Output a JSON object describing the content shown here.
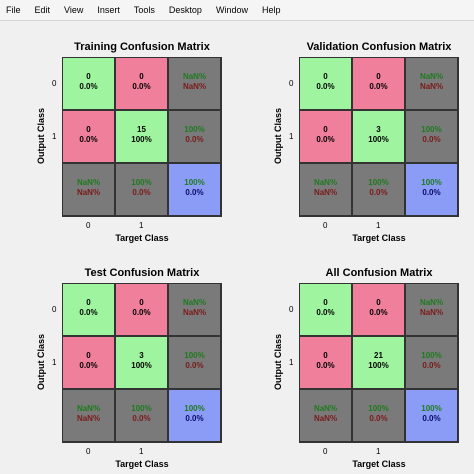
{
  "menu": [
    "File",
    "Edit",
    "View",
    "Insert",
    "Tools",
    "Desktop",
    "Window",
    "Help"
  ],
  "panels": [
    {
      "title": "Training Confusion Matrix",
      "ylabel": "Output Class",
      "xlabel": "Target Class",
      "yticks": [
        "0",
        "1"
      ],
      "xticks": [
        "0",
        "1"
      ],
      "cells": [
        [
          {
            "l1": "0",
            "l2": "0.0%",
            "kind": "green"
          },
          {
            "l1": "0",
            "l2": "0.0%",
            "kind": "red"
          },
          {
            "l1": "NaN%",
            "l2": "NaN%",
            "kind": "grey"
          }
        ],
        [
          {
            "l1": "0",
            "l2": "0.0%",
            "kind": "red"
          },
          {
            "l1": "15",
            "l2": "100%",
            "kind": "green"
          },
          {
            "l1": "100%",
            "l2": "0.0%",
            "kind": "grey"
          }
        ],
        [
          {
            "l1": "NaN%",
            "l2": "NaN%",
            "kind": "grey"
          },
          {
            "l1": "100%",
            "l2": "0.0%",
            "kind": "grey"
          },
          {
            "l1": "100%",
            "l2": "0.0%",
            "kind": "blue"
          }
        ]
      ]
    },
    {
      "title": "Validation Confusion Matrix",
      "ylabel": "Output Class",
      "xlabel": "Target Class",
      "yticks": [
        "0",
        "1"
      ],
      "xticks": [
        "0",
        "1"
      ],
      "cells": [
        [
          {
            "l1": "0",
            "l2": "0.0%",
            "kind": "green"
          },
          {
            "l1": "0",
            "l2": "0.0%",
            "kind": "red"
          },
          {
            "l1": "NaN%",
            "l2": "NaN%",
            "kind": "grey"
          }
        ],
        [
          {
            "l1": "0",
            "l2": "0.0%",
            "kind": "red"
          },
          {
            "l1": "3",
            "l2": "100%",
            "kind": "green"
          },
          {
            "l1": "100%",
            "l2": "0.0%",
            "kind": "grey"
          }
        ],
        [
          {
            "l1": "NaN%",
            "l2": "NaN%",
            "kind": "grey"
          },
          {
            "l1": "100%",
            "l2": "0.0%",
            "kind": "grey"
          },
          {
            "l1": "100%",
            "l2": "0.0%",
            "kind": "blue"
          }
        ]
      ]
    },
    {
      "title": "Test Confusion Matrix",
      "ylabel": "Output Class",
      "xlabel": "Target Class",
      "yticks": [
        "0",
        "1"
      ],
      "xticks": [
        "0",
        "1"
      ],
      "cells": [
        [
          {
            "l1": "0",
            "l2": "0.0%",
            "kind": "green"
          },
          {
            "l1": "0",
            "l2": "0.0%",
            "kind": "red"
          },
          {
            "l1": "NaN%",
            "l2": "NaN%",
            "kind": "grey"
          }
        ],
        [
          {
            "l1": "0",
            "l2": "0.0%",
            "kind": "red"
          },
          {
            "l1": "3",
            "l2": "100%",
            "kind": "green"
          },
          {
            "l1": "100%",
            "l2": "0.0%",
            "kind": "grey"
          }
        ],
        [
          {
            "l1": "NaN%",
            "l2": "NaN%",
            "kind": "grey"
          },
          {
            "l1": "100%",
            "l2": "0.0%",
            "kind": "grey"
          },
          {
            "l1": "100%",
            "l2": "0.0%",
            "kind": "blue"
          }
        ]
      ]
    },
    {
      "title": "All Confusion Matrix",
      "ylabel": "Output Class",
      "xlabel": "Target Class",
      "yticks": [
        "0",
        "1"
      ],
      "xticks": [
        "0",
        "1"
      ],
      "cells": [
        [
          {
            "l1": "0",
            "l2": "0.0%",
            "kind": "green"
          },
          {
            "l1": "0",
            "l2": "0.0%",
            "kind": "red"
          },
          {
            "l1": "NaN%",
            "l2": "NaN%",
            "kind": "grey"
          }
        ],
        [
          {
            "l1": "0",
            "l2": "0.0%",
            "kind": "red"
          },
          {
            "l1": "21",
            "l2": "100%",
            "kind": "green"
          },
          {
            "l1": "100%",
            "l2": "0.0%",
            "kind": "grey"
          }
        ],
        [
          {
            "l1": "NaN%",
            "l2": "NaN%",
            "kind": "grey"
          },
          {
            "l1": "100%",
            "l2": "0.0%",
            "kind": "grey"
          },
          {
            "l1": "100%",
            "l2": "0.0%",
            "kind": "blue"
          }
        ]
      ]
    }
  ],
  "colors": {
    "green": "#9ff59f",
    "red": "#f07f9b",
    "grey": "#7a7a7a",
    "blue": "#8a9cf5"
  }
}
